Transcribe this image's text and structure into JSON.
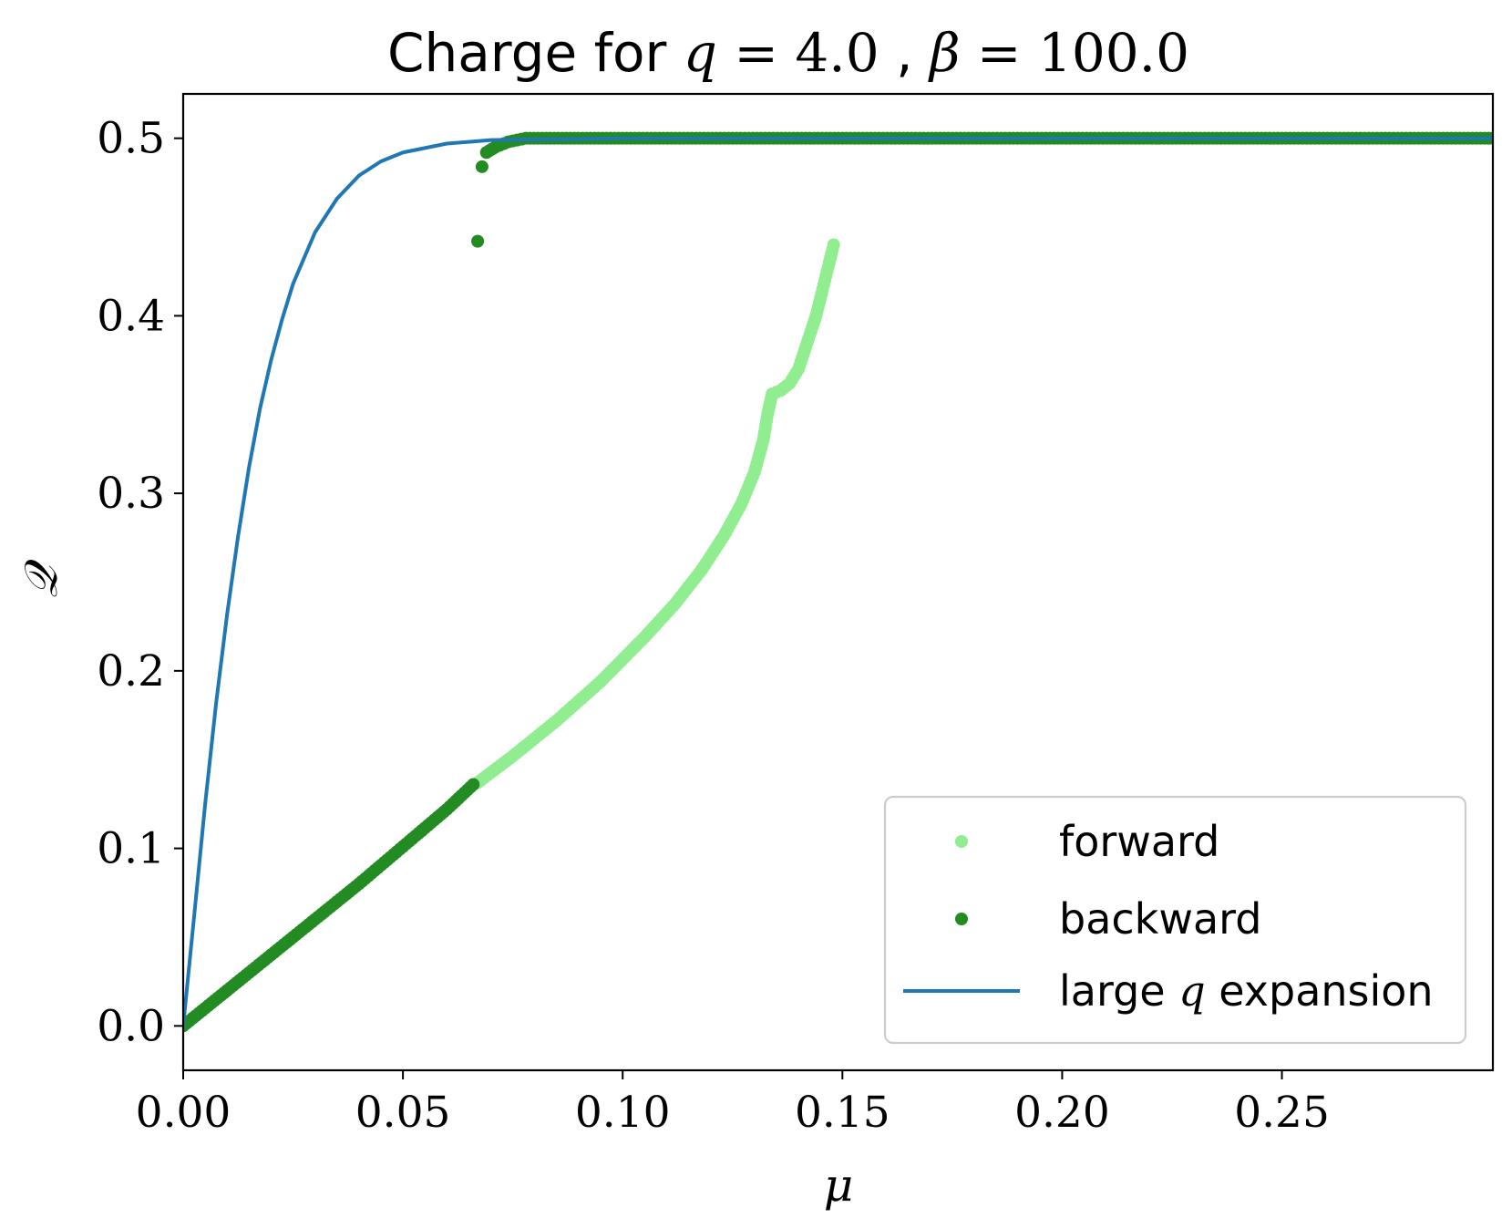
{
  "chart_data": {
    "type": "scatter",
    "title": {
      "prefix": "Charge for",
      "q_symbol": "q",
      "q_value": "4.0",
      "sep": ",",
      "beta_symbol": "β",
      "beta_value": "100.0",
      "eq": "="
    },
    "xlabel": "μ",
    "ylabel": "𝒬",
    "xlim": [
      0.0,
      0.298
    ],
    "ylim": [
      -0.025,
      0.525
    ],
    "xticks": [
      "0.00",
      "0.05",
      "0.10",
      "0.15",
      "0.20",
      "0.25"
    ],
    "xtick_values": [
      0.0,
      0.05,
      0.1,
      0.15,
      0.2,
      0.25
    ],
    "yticks": [
      "0.0",
      "0.1",
      "0.2",
      "0.3",
      "0.4",
      "0.5"
    ],
    "ytick_values": [
      0.0,
      0.1,
      0.2,
      0.3,
      0.4,
      0.5
    ],
    "grid": false,
    "legend_position": "lower right",
    "series": [
      {
        "name": "forward",
        "kind": "scatter",
        "color": "#90ee90",
        "points": [
          [
            0.067,
            0.137
          ],
          [
            0.075,
            0.152
          ],
          [
            0.085,
            0.172
          ],
          [
            0.095,
            0.194
          ],
          [
            0.105,
            0.219
          ],
          [
            0.112,
            0.238
          ],
          [
            0.118,
            0.257
          ],
          [
            0.123,
            0.276
          ],
          [
            0.127,
            0.294
          ],
          [
            0.13,
            0.312
          ],
          [
            0.132,
            0.33
          ],
          [
            0.133,
            0.345
          ],
          [
            0.134,
            0.356
          ],
          [
            0.136,
            0.358
          ],
          [
            0.138,
            0.362
          ],
          [
            0.14,
            0.37
          ],
          [
            0.142,
            0.385
          ],
          [
            0.144,
            0.4
          ],
          [
            0.145,
            0.41
          ],
          [
            0.146,
            0.42
          ],
          [
            0.147,
            0.43
          ],
          [
            0.148,
            0.44
          ]
        ]
      },
      {
        "name": "backward",
        "kind": "scatter",
        "color": "#228b22",
        "points": [
          [
            0.0,
            0.0
          ],
          [
            0.01,
            0.02
          ],
          [
            0.02,
            0.04
          ],
          [
            0.03,
            0.06
          ],
          [
            0.04,
            0.08
          ],
          [
            0.05,
            0.101
          ],
          [
            0.06,
            0.122
          ],
          [
            0.066,
            0.136
          ],
          [
            0.067,
            0.442
          ],
          [
            0.068,
            0.484
          ],
          [
            0.069,
            0.492
          ],
          [
            0.071,
            0.495
          ],
          [
            0.074,
            0.498
          ],
          [
            0.078,
            0.5
          ],
          [
            0.1,
            0.5
          ],
          [
            0.15,
            0.5
          ],
          [
            0.2,
            0.5
          ],
          [
            0.25,
            0.5
          ],
          [
            0.298,
            0.5
          ]
        ]
      },
      {
        "name": "large q expansion",
        "name_prefix": "large",
        "name_symbol": "q",
        "name_suffix": "expansion",
        "kind": "line",
        "color": "#1f77b4",
        "points": [
          [
            0.0,
            0.0
          ],
          [
            0.0025,
            0.062
          ],
          [
            0.005,
            0.125
          ],
          [
            0.0075,
            0.182
          ],
          [
            0.01,
            0.232
          ],
          [
            0.0125,
            0.276
          ],
          [
            0.015,
            0.315
          ],
          [
            0.0175,
            0.348
          ],
          [
            0.02,
            0.375
          ],
          [
            0.0225,
            0.398
          ],
          [
            0.025,
            0.418
          ],
          [
            0.03,
            0.447
          ],
          [
            0.035,
            0.466
          ],
          [
            0.04,
            0.479
          ],
          [
            0.045,
            0.487
          ],
          [
            0.05,
            0.492
          ],
          [
            0.06,
            0.497
          ],
          [
            0.07,
            0.499
          ],
          [
            0.1,
            0.5
          ],
          [
            0.298,
            0.5
          ]
        ]
      }
    ]
  }
}
